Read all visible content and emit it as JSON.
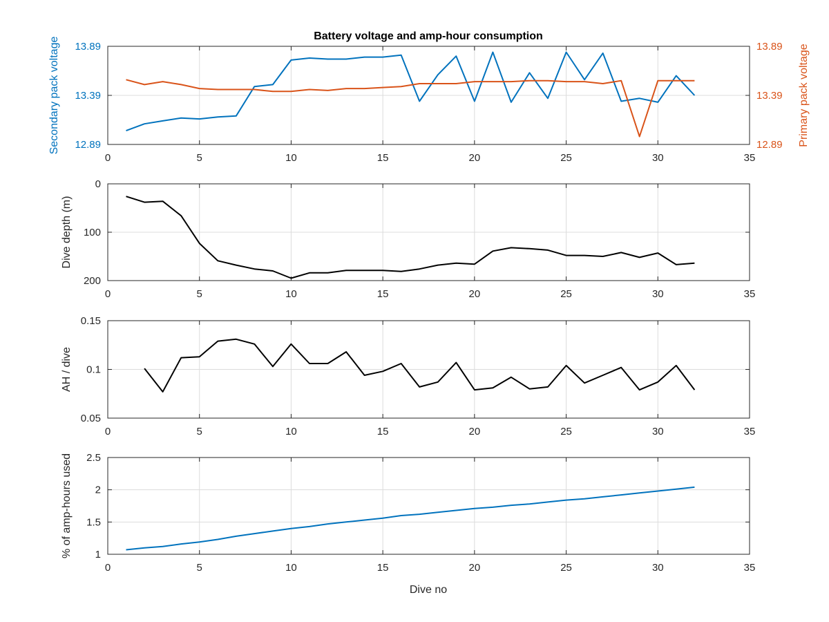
{
  "figure": {
    "title": "Battery voltage and amp-hour consumption",
    "xlabel": "Dive no"
  },
  "colors": {
    "blue": "#0072bd",
    "orange": "#d95319",
    "black": "#000000",
    "axis": "#262626",
    "grid": "#dcdcdc"
  },
  "chart_data": [
    {
      "type": "line",
      "title": "Battery voltage and amp-hour consumption",
      "xlabel": "",
      "ylabel": "Secondary pack voltage",
      "ylabel_right": "Primary pack voltage",
      "xlim": [
        0,
        35
      ],
      "ylim": [
        12.89,
        13.89
      ],
      "ylim_right": [
        12.89,
        13.89
      ],
      "xticks": [
        0,
        5,
        10,
        15,
        20,
        25,
        30,
        35
      ],
      "yticks": [
        12.89,
        13.39,
        13.89
      ],
      "yticks_right": [
        12.89,
        13.39,
        13.89
      ],
      "grid": true,
      "x": [
        1,
        2,
        3,
        4,
        5,
        6,
        7,
        8,
        9,
        10,
        11,
        12,
        13,
        14,
        15,
        16,
        17,
        18,
        19,
        20,
        21,
        22,
        23,
        24,
        25,
        26,
        27,
        28,
        29,
        30,
        31,
        32
      ],
      "series": [
        {
          "axis": "left",
          "color": "#0072bd",
          "values": [
            13.03,
            13.1,
            13.13,
            13.16,
            13.15,
            13.17,
            13.18,
            13.48,
            13.5,
            13.75,
            13.77,
            13.76,
            13.76,
            13.78,
            13.78,
            13.8,
            13.33,
            13.6,
            13.79,
            13.33,
            13.83,
            13.32,
            13.62,
            13.36,
            13.83,
            13.55,
            13.82,
            13.33,
            13.36,
            13.32,
            13.59,
            13.39
          ]
        },
        {
          "axis": "right",
          "color": "#d95319",
          "values": [
            13.55,
            13.5,
            13.53,
            13.5,
            13.46,
            13.45,
            13.45,
            13.45,
            13.43,
            13.43,
            13.45,
            13.44,
            13.46,
            13.46,
            13.47,
            13.48,
            13.51,
            13.51,
            13.51,
            13.53,
            13.53,
            13.53,
            13.54,
            13.54,
            13.53,
            13.53,
            13.51,
            13.54,
            12.97,
            13.54,
            13.54,
            13.54
          ]
        }
      ]
    },
    {
      "type": "line",
      "xlabel": "",
      "ylabel": "Dive depth (m)",
      "xlim": [
        0,
        35
      ],
      "ylim": [
        0,
        200
      ],
      "y_reversed": true,
      "xticks": [
        0,
        5,
        10,
        15,
        20,
        25,
        30,
        35
      ],
      "yticks": [
        0,
        100,
        200
      ],
      "grid": true,
      "x": [
        1,
        2,
        3,
        4,
        5,
        6,
        7,
        8,
        9,
        10,
        11,
        12,
        13,
        14,
        15,
        16,
        17,
        18,
        19,
        20,
        21,
        22,
        23,
        24,
        25,
        26,
        27,
        28,
        29,
        30,
        31,
        32
      ],
      "series": [
        {
          "color": "#000000",
          "values": [
            26,
            38,
            36,
            66,
            123,
            159,
            168,
            176,
            180,
            195,
            184,
            184,
            179,
            179,
            179,
            181,
            176,
            168,
            164,
            166,
            139,
            132,
            134,
            137,
            148,
            148,
            150,
            142,
            152,
            143,
            167,
            164
          ]
        }
      ]
    },
    {
      "type": "line",
      "xlabel": "",
      "ylabel": "AH / dive",
      "xlim": [
        0,
        35
      ],
      "ylim": [
        0.05,
        0.15
      ],
      "xticks": [
        0,
        5,
        10,
        15,
        20,
        25,
        30,
        35
      ],
      "yticks": [
        0.05,
        0.1,
        0.15
      ],
      "grid": true,
      "x": [
        2,
        3,
        4,
        5,
        6,
        7,
        8,
        9,
        10,
        11,
        12,
        13,
        14,
        15,
        16,
        17,
        18,
        19,
        20,
        21,
        22,
        23,
        24,
        25,
        26,
        27,
        28,
        29,
        30,
        31,
        32
      ],
      "series": [
        {
          "color": "#000000",
          "values": [
            0.101,
            0.077,
            0.112,
            0.113,
            0.129,
            0.131,
            0.126,
            0.103,
            0.126,
            0.106,
            0.106,
            0.118,
            0.094,
            0.098,
            0.106,
            0.082,
            0.087,
            0.107,
            0.079,
            0.081,
            0.092,
            0.08,
            0.082,
            0.104,
            0.086,
            0.094,
            0.102,
            0.079,
            0.087,
            0.104,
            0.079
          ]
        }
      ]
    },
    {
      "type": "line",
      "xlabel": "Dive no",
      "ylabel": "% of amp-hours used",
      "xlim": [
        0,
        35
      ],
      "ylim": [
        1,
        2.5
      ],
      "xticks": [
        0,
        5,
        10,
        15,
        20,
        25,
        30,
        35
      ],
      "yticks": [
        1,
        1.5,
        2,
        2.5
      ],
      "grid": true,
      "x": [
        1,
        2,
        3,
        4,
        5,
        6,
        7,
        8,
        9,
        10,
        11,
        12,
        13,
        14,
        15,
        16,
        17,
        18,
        19,
        20,
        21,
        22,
        23,
        24,
        25,
        26,
        27,
        28,
        29,
        30,
        31,
        32
      ],
      "series": [
        {
          "color": "#0072bd",
          "values": [
            1.07,
            1.1,
            1.12,
            1.16,
            1.19,
            1.23,
            1.28,
            1.32,
            1.36,
            1.4,
            1.43,
            1.47,
            1.5,
            1.53,
            1.56,
            1.6,
            1.62,
            1.65,
            1.68,
            1.71,
            1.73,
            1.76,
            1.78,
            1.81,
            1.84,
            1.86,
            1.89,
            1.92,
            1.95,
            1.98,
            2.01,
            2.04
          ]
        }
      ]
    }
  ]
}
